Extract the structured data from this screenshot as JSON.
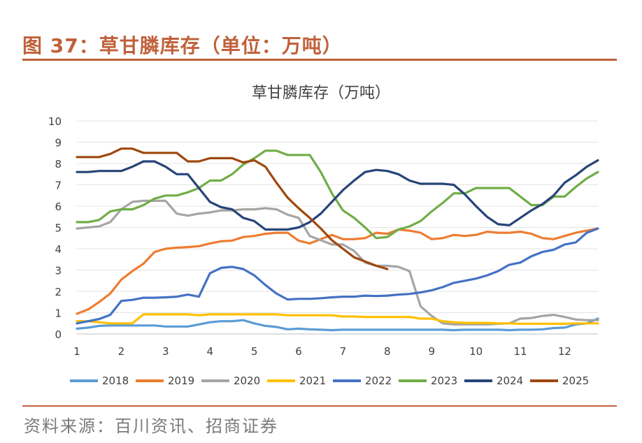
{
  "figure": {
    "label": "图 37：草甘膦库存（单位：万吨）",
    "source": "资料来源：百川资讯、招商证券"
  },
  "colors": {
    "accent": "#c0613a"
  },
  "chart_data": {
    "type": "line",
    "title": "草甘膦库存（万吨）",
    "xlabel": "",
    "ylabel": "",
    "xlim": [
      1,
      12.75
    ],
    "ylim": [
      0,
      10
    ],
    "y_ticks": [
      0,
      1,
      2,
      3,
      4,
      5,
      6,
      7,
      8,
      9,
      10
    ],
    "x_ticks": [
      1,
      2,
      3,
      4,
      5,
      6,
      7,
      8,
      9,
      10,
      11,
      12
    ],
    "grid": "horizontal",
    "legend_position": "bottom",
    "series": [
      {
        "name": "2018",
        "color": "#5b9bd5",
        "x": [
          1,
          1.25,
          1.5,
          1.75,
          2,
          2.25,
          2.5,
          2.75,
          3,
          3.25,
          3.5,
          3.75,
          4,
          4.25,
          4.5,
          4.75,
          5,
          5.25,
          5.5,
          5.75,
          6,
          6.25,
          6.5,
          6.75,
          7,
          7.25,
          7.5,
          7.75,
          8,
          8.25,
          8.5,
          8.75,
          9,
          9.25,
          9.5,
          9.75,
          10,
          10.25,
          10.5,
          10.75,
          11,
          11.25,
          11.5,
          11.75,
          12,
          12.25,
          12.5,
          12.75
        ],
        "y": [
          0.25,
          0.3,
          0.38,
          0.4,
          0.4,
          0.4,
          0.4,
          0.4,
          0.35,
          0.35,
          0.35,
          0.45,
          0.55,
          0.6,
          0.6,
          0.65,
          0.5,
          0.38,
          0.33,
          0.22,
          0.25,
          0.22,
          0.2,
          0.18,
          0.2,
          0.2,
          0.2,
          0.2,
          0.2,
          0.2,
          0.2,
          0.2,
          0.2,
          0.2,
          0.18,
          0.2,
          0.2,
          0.2,
          0.2,
          0.18,
          0.2,
          0.2,
          0.22,
          0.28,
          0.3,
          0.45,
          0.5,
          0.72
        ]
      },
      {
        "name": "2019",
        "color": "#ed7d31",
        "x": [
          1,
          1.25,
          1.5,
          1.75,
          2,
          2.25,
          2.5,
          2.75,
          3,
          3.25,
          3.5,
          3.75,
          4,
          4.25,
          4.5,
          4.75,
          5,
          5.25,
          5.5,
          5.75,
          6,
          6.25,
          6.5,
          6.75,
          7,
          7.25,
          7.5,
          7.75,
          8,
          8.25,
          8.5,
          8.75,
          9,
          9.25,
          9.5,
          9.75,
          10,
          10.25,
          10.5,
          10.75,
          11,
          11.25,
          11.5,
          11.75,
          12,
          12.25,
          12.5,
          12.75
        ],
        "y": [
          0.95,
          1.15,
          1.5,
          1.9,
          2.55,
          2.95,
          3.3,
          3.85,
          4.0,
          4.05,
          4.08,
          4.12,
          4.25,
          4.35,
          4.38,
          4.55,
          4.6,
          4.7,
          4.75,
          4.75,
          4.38,
          4.25,
          4.45,
          4.65,
          4.45,
          4.45,
          4.5,
          4.75,
          4.7,
          4.9,
          4.85,
          4.75,
          4.45,
          4.5,
          4.65,
          4.6,
          4.65,
          4.8,
          4.75,
          4.75,
          4.8,
          4.7,
          4.5,
          4.45,
          4.6,
          4.75,
          4.85,
          4.95
        ]
      },
      {
        "name": "2020",
        "color": "#a5a5a5",
        "x": [
          1,
          1.25,
          1.5,
          1.75,
          2,
          2.25,
          2.5,
          2.75,
          3,
          3.25,
          3.5,
          3.75,
          4,
          4.25,
          4.5,
          4.75,
          5,
          5.25,
          5.5,
          5.75,
          6,
          6.25,
          6.5,
          6.75,
          7,
          7.25,
          7.5,
          7.75,
          8,
          8.25,
          8.5,
          8.75,
          9,
          9.25,
          9.5,
          9.75,
          10,
          10.25,
          10.5,
          10.75,
          11,
          11.25,
          11.5,
          11.75,
          12,
          12.25,
          12.5,
          12.75
        ],
        "y": [
          4.95,
          5.0,
          5.05,
          5.25,
          5.85,
          6.2,
          6.25,
          6.25,
          6.25,
          5.65,
          5.55,
          5.65,
          5.7,
          5.8,
          5.8,
          5.85,
          5.85,
          5.9,
          5.85,
          5.6,
          5.45,
          4.6,
          4.4,
          4.2,
          4.2,
          3.9,
          3.35,
          3.2,
          3.2,
          3.15,
          2.95,
          1.3,
          0.85,
          0.5,
          0.45,
          0.45,
          0.45,
          0.45,
          0.48,
          0.5,
          0.72,
          0.75,
          0.85,
          0.9,
          0.8,
          0.68,
          0.65,
          0.65
        ]
      },
      {
        "name": "2021",
        "color": "#ffc000",
        "x": [
          1,
          1.25,
          1.5,
          1.75,
          2,
          2.25,
          2.5,
          2.75,
          3,
          3.25,
          3.5,
          3.75,
          4,
          4.25,
          4.5,
          4.75,
          5,
          5.25,
          5.5,
          5.75,
          6,
          6.25,
          6.5,
          6.75,
          7,
          7.25,
          7.5,
          7.75,
          8,
          8.25,
          8.5,
          8.75,
          9,
          9.25,
          9.5,
          9.75,
          10,
          10.25,
          10.5,
          10.75,
          11,
          11.25,
          11.5,
          11.75,
          12,
          12.25,
          12.5,
          12.75
        ],
        "y": [
          0.6,
          0.6,
          0.55,
          0.5,
          0.5,
          0.5,
          0.92,
          0.92,
          0.92,
          0.92,
          0.92,
          0.88,
          0.92,
          0.92,
          0.92,
          0.92,
          0.92,
          0.92,
          0.92,
          0.88,
          0.88,
          0.88,
          0.88,
          0.88,
          0.82,
          0.82,
          0.8,
          0.8,
          0.8,
          0.8,
          0.8,
          0.72,
          0.72,
          0.6,
          0.55,
          0.52,
          0.52,
          0.52,
          0.5,
          0.5,
          0.48,
          0.48,
          0.48,
          0.48,
          0.48,
          0.5,
          0.5,
          0.5
        ]
      },
      {
        "name": "2022",
        "color": "#4472c4",
        "x": [
          1,
          1.25,
          1.5,
          1.75,
          2,
          2.25,
          2.5,
          2.75,
          3,
          3.25,
          3.5,
          3.75,
          4,
          4.25,
          4.5,
          4.75,
          5,
          5.25,
          5.5,
          5.75,
          6,
          6.25,
          6.5,
          6.75,
          7,
          7.25,
          7.5,
          7.75,
          8,
          8.25,
          8.5,
          8.75,
          9,
          9.25,
          9.5,
          9.75,
          10,
          10.25,
          10.5,
          10.75,
          11,
          11.25,
          11.5,
          11.75,
          12,
          12.25,
          12.5,
          12.75
        ],
        "y": [
          0.5,
          0.6,
          0.7,
          0.9,
          1.55,
          1.6,
          1.7,
          1.7,
          1.72,
          1.75,
          1.85,
          1.75,
          2.85,
          3.1,
          3.15,
          3.05,
          2.75,
          2.3,
          1.9,
          1.62,
          1.65,
          1.65,
          1.68,
          1.72,
          1.75,
          1.75,
          1.8,
          1.78,
          1.8,
          1.85,
          1.88,
          1.95,
          2.05,
          2.2,
          2.4,
          2.5,
          2.6,
          2.75,
          2.95,
          3.25,
          3.35,
          3.65,
          3.85,
          3.95,
          4.2,
          4.3,
          4.75,
          4.95
        ]
      },
      {
        "name": "2023",
        "color": "#70ad47",
        "x": [
          1,
          1.25,
          1.5,
          1.75,
          2,
          2.25,
          2.5,
          2.75,
          3,
          3.25,
          3.5,
          3.75,
          4,
          4.25,
          4.5,
          4.75,
          5,
          5.25,
          5.5,
          5.75,
          6,
          6.25,
          6.5,
          6.75,
          7,
          7.25,
          7.5,
          7.75,
          8,
          8.25,
          8.5,
          8.75,
          9,
          9.25,
          9.5,
          9.75,
          10,
          10.25,
          10.5,
          10.75,
          11,
          11.25,
          11.5,
          11.75,
          12,
          12.25,
          12.5,
          12.75
        ],
        "y": [
          5.25,
          5.25,
          5.35,
          5.75,
          5.85,
          5.85,
          6.05,
          6.35,
          6.5,
          6.5,
          6.65,
          6.85,
          7.2,
          7.2,
          7.5,
          7.95,
          8.25,
          8.6,
          8.6,
          8.4,
          8.4,
          8.4,
          7.6,
          6.6,
          5.8,
          5.45,
          5.0,
          4.5,
          4.55,
          4.9,
          5.05,
          5.3,
          5.75,
          6.15,
          6.6,
          6.6,
          6.85,
          6.85,
          6.85,
          6.85,
          6.45,
          6.05,
          6.05,
          6.45,
          6.45,
          6.9,
          7.3,
          7.6
        ]
      },
      {
        "name": "2024",
        "color": "#264478",
        "x": [
          1,
          1.25,
          1.5,
          1.75,
          2,
          2.25,
          2.5,
          2.75,
          3,
          3.25,
          3.5,
          3.75,
          4,
          4.25,
          4.5,
          4.75,
          5,
          5.25,
          5.5,
          5.75,
          6,
          6.25,
          6.5,
          6.75,
          7,
          7.25,
          7.5,
          7.75,
          8,
          8.25,
          8.5,
          8.75,
          9,
          9.25,
          9.5,
          9.75,
          10,
          10.25,
          10.5,
          10.75,
          11,
          11.25,
          11.5,
          11.75,
          12,
          12.25,
          12.5,
          12.75
        ],
        "y": [
          7.6,
          7.6,
          7.65,
          7.65,
          7.65,
          7.85,
          8.1,
          8.1,
          7.85,
          7.5,
          7.5,
          6.85,
          6.2,
          5.95,
          5.85,
          5.45,
          5.3,
          4.9,
          4.9,
          4.9,
          5.0,
          5.25,
          5.65,
          6.2,
          6.75,
          7.2,
          7.6,
          7.7,
          7.65,
          7.5,
          7.2,
          7.05,
          7.05,
          7.05,
          7.0,
          6.55,
          6.0,
          5.5,
          5.15,
          5.1,
          5.45,
          5.8,
          6.1,
          6.5,
          7.1,
          7.45,
          7.85,
          8.15
        ]
      },
      {
        "name": "2025",
        "color": "#9e480e",
        "x": [
          1,
          1.25,
          1.5,
          1.75,
          2,
          2.25,
          2.5,
          2.75,
          3,
          3.25,
          3.5,
          3.75,
          4,
          4.25,
          4.5,
          4.75,
          5,
          5.25,
          5.5,
          5.75,
          6,
          6.25,
          6.5,
          6.75,
          7,
          7.25,
          7.5,
          7.75,
          8
        ],
        "y": [
          8.3,
          8.3,
          8.3,
          8.45,
          8.7,
          8.7,
          8.5,
          8.5,
          8.5,
          8.5,
          8.1,
          8.1,
          8.25,
          8.25,
          8.25,
          8.05,
          8.15,
          7.85,
          7.1,
          6.4,
          5.9,
          5.45,
          4.95,
          4.4,
          4.0,
          3.6,
          3.4,
          3.2,
          3.05
        ]
      }
    ]
  }
}
